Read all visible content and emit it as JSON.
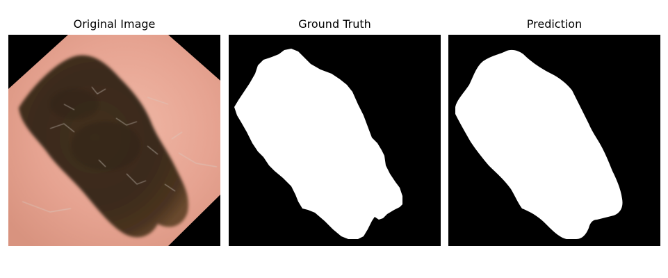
{
  "panels": [
    {
      "title": "Original Image"
    },
    {
      "title": "Ground Truth"
    },
    {
      "title": "Prediction"
    }
  ],
  "colors": {
    "background": "#ffffff",
    "image_border": "#000000",
    "mask_foreground": "#ffffff",
    "mask_background": "#000000",
    "skin": "#e8a896",
    "lesion": "#3b2a1c"
  }
}
